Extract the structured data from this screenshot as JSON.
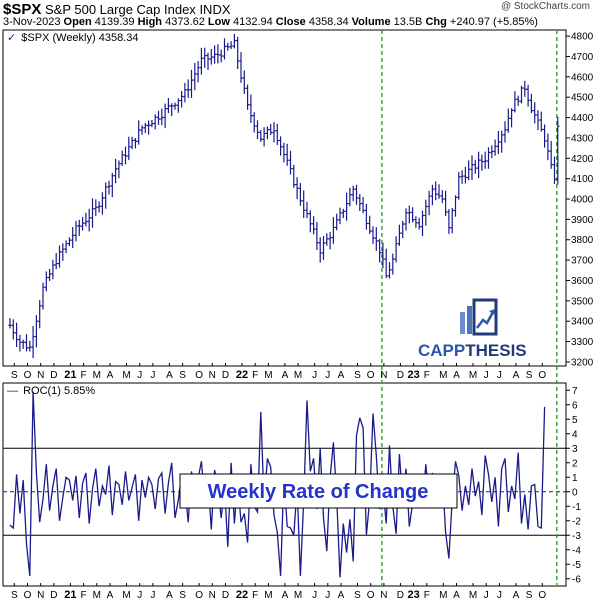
{
  "header": {
    "symbol": "$SPX",
    "name": "S&P 500 Large Cap Index",
    "exchange": "INDX",
    "watermark": "@ StockCharts.com",
    "date": "3-Nov-2023",
    "open_label": "Open",
    "open": "4139.39",
    "high_label": "High",
    "high": "4373.62",
    "low_label": "Low",
    "low": "4132.94",
    "close_label": "Close",
    "close": "4358.34",
    "volume_label": "Volume",
    "volume": "13.5B",
    "chg_label": "Chg",
    "chg": "+240.97 (+5.85%)"
  },
  "price_legend": "$SPX (Weekly) 4358.34",
  "roc_legend": "ROC(1) 5.85%",
  "annotation": "Weekly Rate of Change",
  "logo": {
    "cap": "CAPP",
    "thesis": "THESIS"
  },
  "colors": {
    "series": "#1a1a8c",
    "dashed": "#2ca02c",
    "logo_blue": "#2b58a8",
    "logo_dark": "#213a7a"
  },
  "chart_data": [
    {
      "type": "ohlc",
      "title": "$SPX (Weekly) 4358.34",
      "ylim": [
        3180,
        4830
      ],
      "yticks": [
        3200,
        3300,
        3400,
        3500,
        3600,
        3700,
        3800,
        3900,
        4000,
        4100,
        4200,
        4300,
        4400,
        4500,
        4600,
        4700,
        4800
      ],
      "xticks": [
        "S",
        "O",
        "N",
        "D",
        "21",
        "F",
        "M",
        "A",
        "M",
        "J",
        "J",
        "A",
        "S",
        "O",
        "N",
        "D",
        "22",
        "F",
        "M",
        "A",
        "M",
        "J",
        "J",
        "A",
        "S",
        "O",
        "N",
        "D",
        "23",
        "F",
        "M",
        "A",
        "M",
        "J",
        "J",
        "A",
        "S",
        "O"
      ],
      "xtick_weeks": [
        1,
        5,
        9,
        13,
        18,
        22,
        26,
        30,
        35,
        39,
        43,
        48,
        52,
        57,
        61,
        65,
        70,
        74,
        78,
        83,
        87,
        92,
        96,
        100,
        105,
        109,
        113,
        118,
        122,
        126,
        131,
        135,
        140,
        144,
        148,
        153,
        157,
        161
      ],
      "start": "2020-08-21",
      "anchors": [
        [
          0,
          3380
        ],
        [
          3,
          3300
        ],
        [
          6,
          3270
        ],
        [
          10,
          3560
        ],
        [
          14,
          3700
        ],
        [
          20,
          3850
        ],
        [
          26,
          3950
        ],
        [
          32,
          4150
        ],
        [
          40,
          4350
        ],
        [
          46,
          4420
        ],
        [
          53,
          4520
        ],
        [
          58,
          4680
        ],
        [
          62,
          4700
        ],
        [
          68,
          4760
        ],
        [
          72,
          4450
        ],
        [
          76,
          4300
        ],
        [
          80,
          4350
        ],
        [
          88,
          4000
        ],
        [
          94,
          3750
        ],
        [
          98,
          3850
        ],
        [
          104,
          4050
        ],
        [
          108,
          3900
        ],
        [
          112,
          3750
        ],
        [
          114,
          3620
        ],
        [
          116,
          3700
        ],
        [
          120,
          3950
        ],
        [
          124,
          3880
        ],
        [
          128,
          4050
        ],
        [
          131,
          4000
        ],
        [
          133,
          3850
        ],
        [
          136,
          4100
        ],
        [
          140,
          4150
        ],
        [
          144,
          4200
        ],
        [
          150,
          4350
        ],
        [
          152,
          4450
        ],
        [
          156,
          4550
        ],
        [
          158,
          4450
        ],
        [
          160,
          4370
        ],
        [
          162,
          4300
        ],
        [
          164,
          4150
        ],
        [
          165,
          4110
        ],
        [
          166,
          4358
        ]
      ]
    },
    {
      "type": "line",
      "title": "ROC(1) 5.85%",
      "ylim": [
        -6.5,
        7.5
      ],
      "yticks": [
        -6,
        -5,
        -4,
        -3,
        -2,
        -1,
        0,
        1,
        2,
        3,
        4,
        5,
        6,
        7
      ],
      "reference_lines": [
        3,
        -3
      ],
      "zero_line": 0,
      "values": [
        -2.3,
        -2.5,
        1.2,
        -1.5,
        0.8,
        -3.6,
        -5.8,
        6.9,
        1.3,
        -2.1,
        -0.5,
        1.9,
        -1.3,
        0.4,
        1.6,
        -2.0,
        -0.4,
        1.0,
        0.8,
        -0.6,
        1.1,
        -1.8,
        0.6,
        1.3,
        -2.2,
        0.2,
        1.6,
        -1.0,
        0.4,
        -0.2,
        1.8,
        -1.6,
        0.7,
        0.5,
        -0.9,
        1.4,
        -0.6,
        0.3,
        1.2,
        -2.0,
        0.8,
        -0.4,
        1.0,
        0.5,
        -1.2,
        0.9,
        1.3,
        -1.5,
        0.6,
        2.0,
        -1.8,
        -0.6,
        1.2,
        0.3,
        -2.1,
        1.4,
        -0.2,
        0.9,
        2.1,
        -0.5,
        1.0,
        -2.6,
        1.5,
        0.3,
        -1.8,
        0.4,
        -3.8,
        2.0,
        -2.2,
        0.8,
        -2.1,
        -1.5,
        -3.5,
        1.9,
        -1.0,
        -1.4,
        5.5,
        -0.8,
        2.3,
        1.7,
        -1.6,
        -2.8,
        -5.8,
        1.1,
        -2.4,
        -2.5,
        -3.0,
        0.3,
        -5.8,
        -0.6,
        6.3,
        1.4,
        2.3,
        -1.2,
        3.0,
        -1.8,
        -4.1,
        1.0,
        3.4,
        -0.4,
        -5.9,
        -2.2,
        -4.2,
        -1.9,
        -4.8,
        3.9,
        5.1,
        4.4,
        -3.0,
        -0.5,
        5.4,
        2.5,
        -1.2,
        0.4,
        -2.2,
        3.2,
        -1.0,
        -2.9,
        2.6,
        -0.6,
        1.6,
        -2.4,
        -0.8,
        0.2,
        1.2,
        -1.1,
        1.9,
        -0.5,
        1.3,
        -1.0,
        0.4,
        1.2,
        -2.8,
        -4.6,
        -0.5,
        2.1,
        1.1,
        -1.3,
        0.4,
        -0.9,
        1.6,
        -0.3,
        0.7,
        -1.6,
        2.5,
        1.2,
        -0.7,
        1.0,
        -2.4,
        1.6,
        2.3,
        -1.4,
        0.4,
        -0.5,
        2.7,
        -2.2,
        -0.2,
        -2.6,
        0.4,
        0.5,
        -2.4,
        -2.5,
        5.85
      ]
    }
  ]
}
